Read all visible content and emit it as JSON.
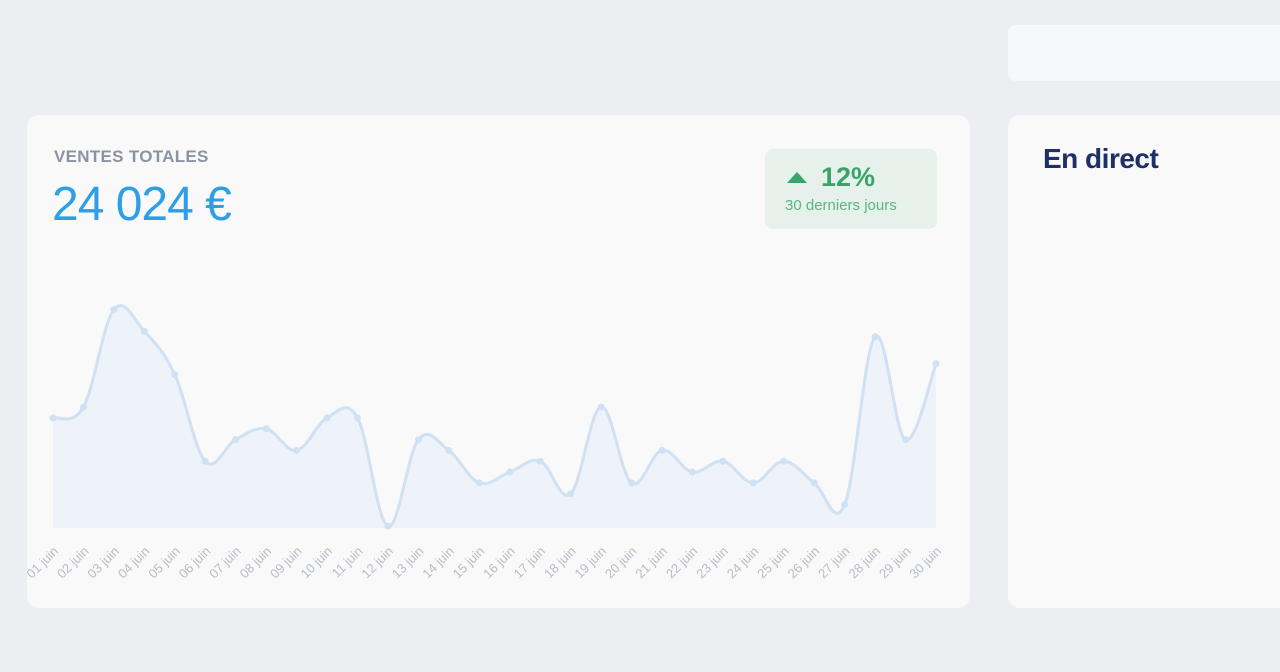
{
  "sales_card": {
    "title": "VENTES TOTALES",
    "total": "24 024 €",
    "badge": {
      "percent": "12%",
      "period": "30 derniers jours",
      "color": "#3aa36a"
    }
  },
  "live_card": {
    "title": "En direct"
  },
  "chart_data": {
    "type": "area",
    "categories": [
      "01 juin",
      "02 juin",
      "03 juin",
      "04 juin",
      "05 juin",
      "06 juin",
      "07 juin",
      "08 juin",
      "09 juin",
      "10 juin",
      "11 juin",
      "12 juin",
      "13 juin",
      "14 juin",
      "15 juin",
      "16 juin",
      "17 juin",
      "18 juin",
      "19 juin",
      "20 juin",
      "21 juin",
      "22 juin",
      "23 juin",
      "24 juin",
      "25 juin",
      "26 juin",
      "27 juin",
      "28 juin",
      "29 juin",
      "30 juin"
    ],
    "values": [
      1000,
      1100,
      2000,
      1800,
      1400,
      600,
      800,
      900,
      700,
      1000,
      1000,
      0,
      800,
      700,
      400,
      500,
      600,
      300,
      1100,
      400,
      700,
      500,
      600,
      400,
      600,
      400,
      200,
      1750,
      800,
      1500
    ],
    "ylim": [
      -100,
      2200
    ],
    "grid": false,
    "line_color": "#cfe1f2",
    "fill_color": "#eef3f9"
  }
}
